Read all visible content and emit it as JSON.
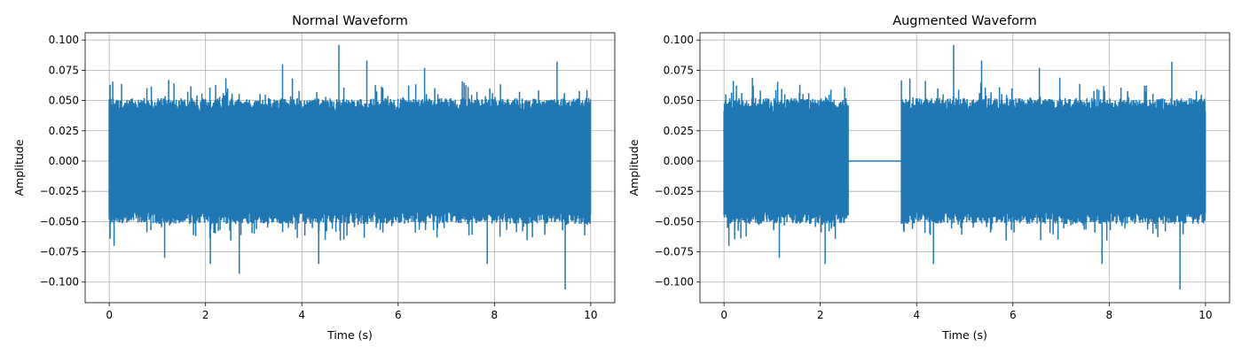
{
  "chart_data": [
    {
      "type": "line",
      "title": "Normal Waveform",
      "xlabel": "Time (s)",
      "ylabel": "Amplitude",
      "xlim": [
        -0.5,
        10.5
      ],
      "ylim": [
        -0.117,
        0.106
      ],
      "xticks": [
        0,
        2,
        4,
        6,
        8,
        10
      ],
      "xtick_labels": [
        "0",
        "2",
        "4",
        "6",
        "8",
        "10"
      ],
      "yticks": [
        -0.1,
        -0.075,
        -0.05,
        -0.025,
        0.0,
        0.025,
        0.05,
        0.075,
        0.1
      ],
      "ytick_labels": [
        "−0.100",
        "−0.075",
        "−0.050",
        "−0.025",
        "0.000",
        "0.025",
        "0.050",
        "0.075",
        "0.100"
      ],
      "grid": true,
      "color": "#1f77b4",
      "series": [
        {
          "x_range": [
            0,
            10
          ],
          "silent_intervals": [],
          "typical_amplitude": 0.05,
          "peaks": [
            {
              "x": 4.77,
              "y": 0.096
            },
            {
              "x": 2.7,
              "y": -0.093
            },
            {
              "x": 9.47,
              "y": -0.106
            },
            {
              "x": 9.3,
              "y": 0.082
            },
            {
              "x": 3.6,
              "y": 0.08
            },
            {
              "x": 5.35,
              "y": 0.083
            },
            {
              "x": 0.1,
              "y": -0.07
            },
            {
              "x": 2.1,
              "y": -0.085
            },
            {
              "x": 4.35,
              "y": -0.085
            },
            {
              "x": 7.85,
              "y": -0.085
            },
            {
              "x": 1.15,
              "y": -0.08
            },
            {
              "x": 6.55,
              "y": 0.077
            }
          ]
        }
      ]
    },
    {
      "type": "line",
      "title": "Augmented Waveform",
      "xlabel": "Time (s)",
      "ylabel": "Amplitude",
      "xlim": [
        -0.5,
        10.5
      ],
      "ylim": [
        -0.117,
        0.106
      ],
      "xticks": [
        0,
        2,
        4,
        6,
        8,
        10
      ],
      "xtick_labels": [
        "0",
        "2",
        "4",
        "6",
        "8",
        "10"
      ],
      "yticks": [
        -0.1,
        -0.075,
        -0.05,
        -0.025,
        0.0,
        0.025,
        0.05,
        0.075,
        0.1
      ],
      "ytick_labels": [
        "−0.100",
        "−0.075",
        "−0.050",
        "−0.025",
        "0.000",
        "0.025",
        "0.050",
        "0.075",
        "0.100"
      ],
      "grid": true,
      "color": "#1f77b4",
      "series": [
        {
          "x_range": [
            0,
            10
          ],
          "silent_intervals": [
            [
              2.58,
              3.68
            ]
          ],
          "typical_amplitude": 0.05,
          "peaks": [
            {
              "x": 4.77,
              "y": 0.096
            },
            {
              "x": 9.47,
              "y": -0.106
            },
            {
              "x": 9.3,
              "y": 0.082
            },
            {
              "x": 5.35,
              "y": 0.083
            },
            {
              "x": 0.1,
              "y": -0.07
            },
            {
              "x": 2.1,
              "y": -0.085
            },
            {
              "x": 4.35,
              "y": -0.085
            },
            {
              "x": 7.85,
              "y": -0.085
            },
            {
              "x": 1.15,
              "y": -0.08
            },
            {
              "x": 6.55,
              "y": 0.077
            }
          ]
        }
      ]
    }
  ]
}
